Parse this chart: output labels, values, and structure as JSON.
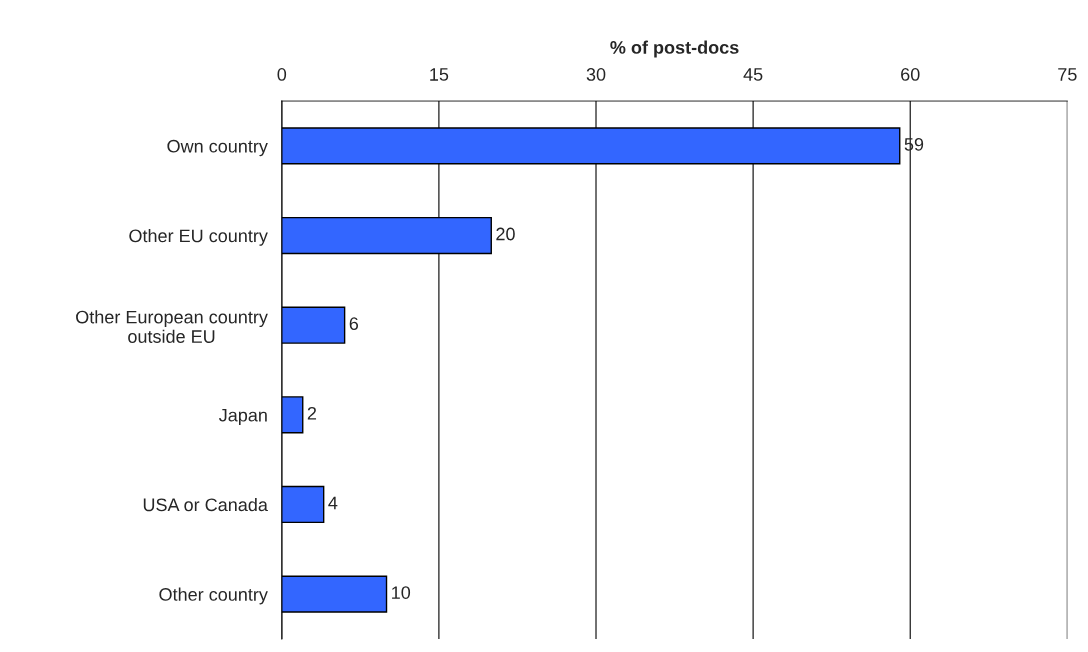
{
  "chart_data": {
    "type": "bar",
    "orientation": "horizontal",
    "xlabel": "% of post-docs",
    "categories": [
      "Own country",
      "Other EU country",
      "Other European country\noutside EU",
      "Japan",
      "USA or Canada",
      "Other country"
    ],
    "values": [
      59,
      20,
      6,
      2,
      4,
      10
    ],
    "color": "#3366ff",
    "xlim": [
      0,
      75
    ],
    "xticks": [
      0,
      15,
      30,
      45,
      60,
      75
    ],
    "grid": "x",
    "data_labels": true
  }
}
